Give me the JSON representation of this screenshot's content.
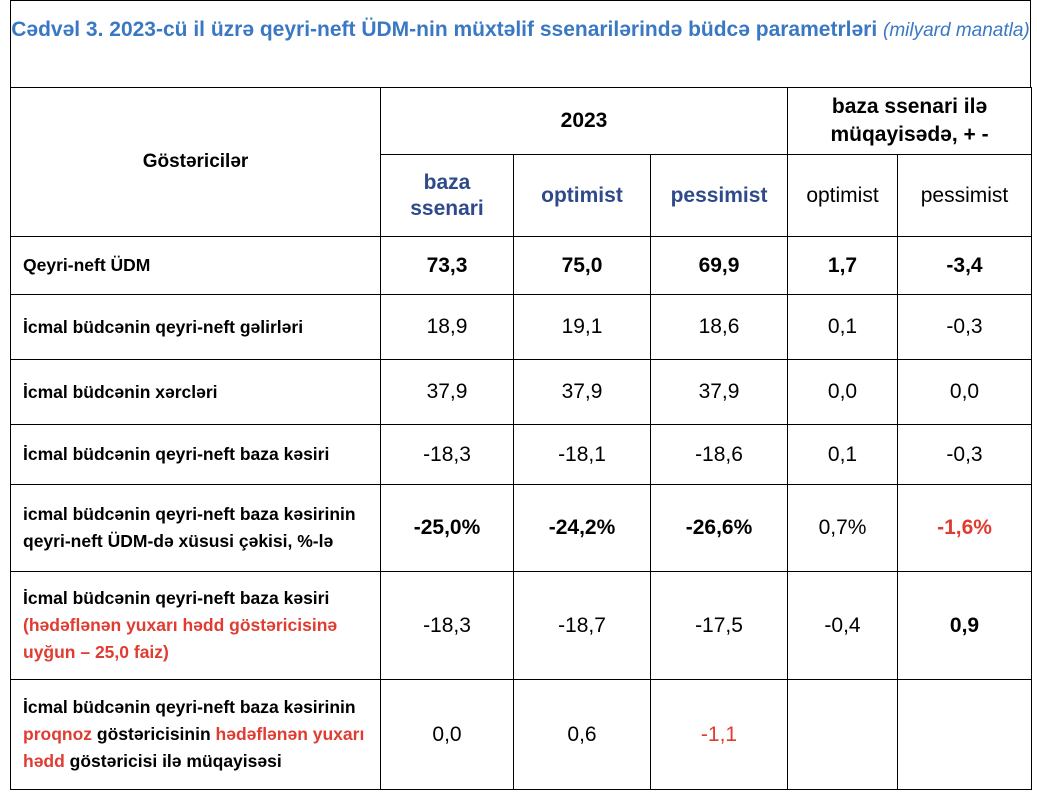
{
  "title": {
    "main": "Cədvəl 3. 2023-cü il üzrə qeyri-neft ÜDM-nin müxtəlif ssenarilərində büdcə parametrləri",
    "unit": "(milyard manatla)"
  },
  "table": {
    "header": {
      "indicator": "Göstəricilər",
      "year": "2023",
      "comparison": "baza ssenari ilə müqayisədə, + -",
      "columns": [
        "baza ssenari",
        "optimist",
        "pessimist",
        "optimist",
        "pessimist"
      ]
    },
    "rows": [
      {
        "label": [
          "Qeyri-neft ÜDM"
        ],
        "cells": [
          "73,3",
          "75,0",
          "69,9",
          "1,7",
          "-3,4"
        ]
      },
      {
        "label": [
          "İcmal büdcənin qeyri-neft gəlirləri"
        ],
        "cells": [
          "18,9",
          "19,1",
          "18,6",
          "0,1",
          "-0,3"
        ]
      },
      {
        "label": [
          "İcmal büdcənin xərcləri"
        ],
        "cells": [
          "37,9",
          "37,9",
          "37,9",
          "0,0",
          "0,0"
        ]
      },
      {
        "label": [
          "İcmal büdcənin qeyri-neft baza kəsiri"
        ],
        "cells": [
          "-18,3",
          "-18,1",
          "-18,6",
          "0,1",
          "-0,3"
        ]
      },
      {
        "label": [
          "icmal büdcənin qeyri-neft baza kəsirinin qeyri-neft ÜDM-də xüsusi çəkisi, %-lə"
        ],
        "cells": [
          "-25,0%",
          "-24,2%",
          "-26,6%",
          "0,7%",
          "-1,6%"
        ]
      },
      {
        "label": [
          "İcmal büdcənin qeyri-neft baza kəsiri ",
          "(hədəflənən yuxarı hədd göstəricisinə uyğun – 25,0 faiz)"
        ],
        "cells": [
          "-18,3",
          "-18,7",
          "-17,5",
          "-0,4",
          "0,9"
        ]
      },
      {
        "label": [
          "İcmal büdcənin qeyri-neft baza kəsirinin ",
          "proqnoz",
          " göstəricisinin ",
          "hədəflənən yuxarı hədd",
          " göstəricisi ilə müqayisəsi"
        ],
        "cells": [
          "0,0",
          "0,6",
          "-1,1"
        ]
      }
    ]
  }
}
